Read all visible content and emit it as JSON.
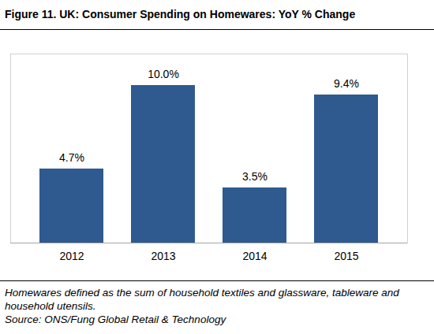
{
  "chart_data": {
    "type": "bar",
    "title": "Figure 11. UK: Consumer Spending on Homewares: YoY % Change",
    "categories": [
      "2012",
      "2013",
      "2014",
      "2015"
    ],
    "values": [
      4.7,
      10.0,
      3.5,
      9.4
    ],
    "value_labels": [
      "4.7%",
      "10.0%",
      "3.5%",
      "9.4%"
    ],
    "data_labels": true,
    "color": "#2e5a8f",
    "ylim": [
      0,
      12
    ],
    "grid": false,
    "tick_labels": "x",
    "caption": [
      "Homewares defined as the sum of household textiles and glassware, tableware and household utensils.",
      "Source: ONS/Fung Global Retail & Technology"
    ]
  }
}
